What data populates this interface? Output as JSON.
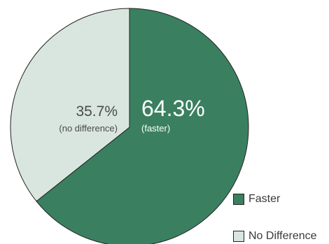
{
  "chart_data": {
    "type": "pie",
    "title": "",
    "categories": [
      "Faster",
      "No Difference"
    ],
    "values": [
      64.3,
      35.7
    ],
    "slice_labels": [
      {
        "value_text": "64.3%",
        "sub_text": "(faster)"
      },
      {
        "value_text": "35.7%",
        "sub_text": "(no difference)"
      }
    ],
    "colors": [
      "#3a8060",
      "#d9e6df"
    ],
    "label_colors": [
      "#ffffff",
      "#4a4a4a"
    ],
    "edge_color": "#222222",
    "start_angle": "12 o'clock",
    "direction": "clockwise",
    "legend": {
      "placement": "bottom-right",
      "items": [
        {
          "label": "Faster",
          "color": "#3a8060"
        },
        {
          "label": "No Difference",
          "color": "#d9e6df"
        }
      ]
    }
  }
}
